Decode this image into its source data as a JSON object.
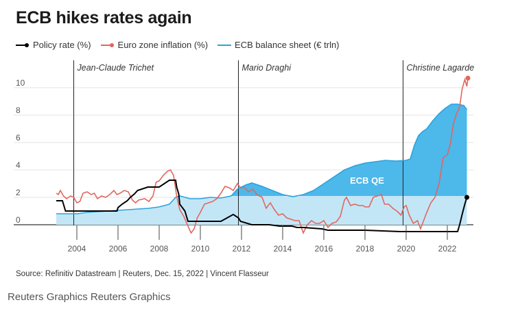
{
  "title": "ECB hikes rates again",
  "legend": [
    {
      "label": "Policy rate (%)",
      "color": "#000000",
      "icon": "line-dot"
    },
    {
      "label": "Euro zone inflation (%)",
      "color": "#e0675e",
      "icon": "line-dot"
    },
    {
      "label": "ECB balance sheet (€ trln)",
      "color": "#2aa3dc",
      "icon": "line"
    }
  ],
  "source": "Source: Refinitiv Datastream | Reuters, Dec. 15, 2022 | Vincent Flasseur",
  "footer": "Reuters Graphics Reuters Graphics",
  "colors": {
    "policy": "#000000",
    "inflation": "#e0675e",
    "balance_line": "#2aa3dc",
    "qe_fill": "#4db8ea",
    "base_fill": "#c3e6f7"
  },
  "chart_data": {
    "type": "line",
    "title": "ECB hikes rates again",
    "xlabel": "",
    "ylabel": "",
    "xlim": [
      2003.0,
      2023.1
    ],
    "ylim": [
      -0.6,
      11
    ],
    "x_ticks": [
      2004,
      2006,
      2008,
      2010,
      2012,
      2014,
      2016,
      2018,
      2020,
      2022
    ],
    "y_ticks": [
      0,
      2,
      4,
      6,
      8,
      10
    ],
    "annotations": [
      {
        "label": "Jean-Claude Trichet",
        "x": 2003.85
      },
      {
        "label": "Mario Draghi",
        "x": 2011.85
      },
      {
        "label": "Christine Lagarde",
        "x": 2019.85
      }
    ],
    "area_label": "ECB QE",
    "area_label_position": [
      2018.1,
      3.0
    ],
    "base_level": 2.1,
    "series": [
      {
        "name": "Policy rate (%)",
        "points": [
          [
            2003.0,
            1.75
          ],
          [
            2003.15,
            1.75
          ],
          [
            2003.3,
            1.75
          ],
          [
            2003.45,
            1.0
          ],
          [
            2004.0,
            1.0
          ],
          [
            2005.0,
            1.0
          ],
          [
            2005.95,
            1.0
          ],
          [
            2006.0,
            1.25
          ],
          [
            2006.2,
            1.5
          ],
          [
            2006.45,
            1.75
          ],
          [
            2006.6,
            2.0
          ],
          [
            2006.8,
            2.25
          ],
          [
            2006.95,
            2.5
          ],
          [
            2007.45,
            2.75
          ],
          [
            2008.0,
            2.75
          ],
          [
            2008.5,
            3.25
          ],
          [
            2008.8,
            3.25
          ],
          [
            2008.85,
            2.75
          ],
          [
            2008.95,
            2.25
          ],
          [
            2009.0,
            1.5
          ],
          [
            2009.25,
            1.0
          ],
          [
            2009.4,
            0.25
          ],
          [
            2010.0,
            0.25
          ],
          [
            2011.0,
            0.25
          ],
          [
            2011.3,
            0.5
          ],
          [
            2011.6,
            0.75
          ],
          [
            2011.85,
            0.5
          ],
          [
            2011.95,
            0.25
          ],
          [
            2012.5,
            0.0
          ],
          [
            2013.35,
            0.0
          ],
          [
            2013.85,
            -0.1
          ],
          [
            2014.45,
            -0.1
          ],
          [
            2014.7,
            -0.2
          ],
          [
            2015.0,
            -0.2
          ],
          [
            2015.9,
            -0.3
          ],
          [
            2016.2,
            -0.4
          ],
          [
            2017.0,
            -0.4
          ],
          [
            2018.0,
            -0.4
          ],
          [
            2019.7,
            -0.5
          ],
          [
            2020.0,
            -0.5
          ],
          [
            2021.0,
            -0.5
          ],
          [
            2022.0,
            -0.5
          ],
          [
            2022.5,
            -0.5
          ],
          [
            2022.6,
            0.0
          ],
          [
            2022.72,
            0.75
          ],
          [
            2022.85,
            1.5
          ],
          [
            2022.95,
            2.0
          ]
        ]
      },
      {
        "name": "Euro zone inflation (%)",
        "points": [
          [
            2003.0,
            2.3
          ],
          [
            2003.1,
            2.2
          ],
          [
            2003.2,
            2.5
          ],
          [
            2003.35,
            2.1
          ],
          [
            2003.5,
            1.9
          ],
          [
            2003.7,
            2.1
          ],
          [
            2003.85,
            2.0
          ],
          [
            2004.0,
            1.6
          ],
          [
            2004.15,
            1.7
          ],
          [
            2004.3,
            2.3
          ],
          [
            2004.5,
            2.4
          ],
          [
            2004.7,
            2.2
          ],
          [
            2004.85,
            2.3
          ],
          [
            2005.0,
            1.9
          ],
          [
            2005.2,
            2.1
          ],
          [
            2005.4,
            2.0
          ],
          [
            2005.6,
            2.2
          ],
          [
            2005.8,
            2.5
          ],
          [
            2005.95,
            2.2
          ],
          [
            2006.1,
            2.3
          ],
          [
            2006.3,
            2.5
          ],
          [
            2006.5,
            2.4
          ],
          [
            2006.7,
            1.8
          ],
          [
            2006.85,
            1.6
          ],
          [
            2007.0,
            1.8
          ],
          [
            2007.3,
            1.9
          ],
          [
            2007.5,
            1.7
          ],
          [
            2007.7,
            2.1
          ],
          [
            2007.85,
            3.1
          ],
          [
            2008.0,
            3.2
          ],
          [
            2008.2,
            3.6
          ],
          [
            2008.4,
            3.9
          ],
          [
            2008.55,
            4.0
          ],
          [
            2008.7,
            3.6
          ],
          [
            2008.85,
            2.1
          ],
          [
            2009.0,
            1.1
          ],
          [
            2009.2,
            0.6
          ],
          [
            2009.4,
            -0.1
          ],
          [
            2009.55,
            -0.6
          ],
          [
            2009.7,
            -0.3
          ],
          [
            2009.85,
            0.5
          ],
          [
            2010.0,
            0.9
          ],
          [
            2010.2,
            1.5
          ],
          [
            2010.4,
            1.6
          ],
          [
            2010.6,
            1.7
          ],
          [
            2010.8,
            1.9
          ],
          [
            2011.0,
            2.3
          ],
          [
            2011.2,
            2.8
          ],
          [
            2011.4,
            2.7
          ],
          [
            2011.6,
            2.5
          ],
          [
            2011.8,
            3.0
          ],
          [
            2011.95,
            2.7
          ],
          [
            2012.15,
            2.7
          ],
          [
            2012.35,
            2.4
          ],
          [
            2012.55,
            2.6
          ],
          [
            2012.75,
            2.2
          ],
          [
            2013.0,
            2.0
          ],
          [
            2013.2,
            1.2
          ],
          [
            2013.4,
            1.6
          ],
          [
            2013.6,
            1.1
          ],
          [
            2013.8,
            0.7
          ],
          [
            2014.0,
            0.8
          ],
          [
            2014.2,
            0.5
          ],
          [
            2014.4,
            0.4
          ],
          [
            2014.6,
            0.3
          ],
          [
            2014.8,
            0.3
          ],
          [
            2015.0,
            -0.6
          ],
          [
            2015.2,
            0.0
          ],
          [
            2015.4,
            0.3
          ],
          [
            2015.6,
            0.1
          ],
          [
            2015.8,
            0.1
          ],
          [
            2016.0,
            0.3
          ],
          [
            2016.2,
            -0.2
          ],
          [
            2016.4,
            0.1
          ],
          [
            2016.6,
            0.2
          ],
          [
            2016.8,
            0.6
          ],
          [
            2017.0,
            1.8
          ],
          [
            2017.1,
            2.0
          ],
          [
            2017.3,
            1.4
          ],
          [
            2017.5,
            1.5
          ],
          [
            2017.7,
            1.4
          ],
          [
            2017.9,
            1.4
          ],
          [
            2018.0,
            1.3
          ],
          [
            2018.2,
            1.3
          ],
          [
            2018.4,
            2.0
          ],
          [
            2018.6,
            2.1
          ],
          [
            2018.8,
            2.2
          ],
          [
            2018.95,
            1.5
          ],
          [
            2019.15,
            1.5
          ],
          [
            2019.35,
            1.2
          ],
          [
            2019.55,
            1.0
          ],
          [
            2019.75,
            0.7
          ],
          [
            2019.9,
            1.3
          ],
          [
            2020.0,
            1.4
          ],
          [
            2020.15,
            0.7
          ],
          [
            2020.35,
            0.1
          ],
          [
            2020.55,
            0.3
          ],
          [
            2020.7,
            -0.3
          ],
          [
            2021.0,
            0.9
          ],
          [
            2021.2,
            1.6
          ],
          [
            2021.4,
            2.0
          ],
          [
            2021.6,
            3.0
          ],
          [
            2021.8,
            4.9
          ],
          [
            2022.0,
            5.1
          ],
          [
            2022.15,
            5.9
          ],
          [
            2022.3,
            7.4
          ],
          [
            2022.45,
            8.1
          ],
          [
            2022.6,
            8.6
          ],
          [
            2022.72,
            9.9
          ],
          [
            2022.85,
            10.6
          ],
          [
            2022.95,
            10.1
          ],
          [
            2023.0,
            10.7
          ]
        ]
      },
      {
        "name": "ECB balance sheet (€ trln)",
        "points": [
          [
            2003.0,
            0.8
          ],
          [
            2004.0,
            0.8
          ],
          [
            2004.5,
            0.9
          ],
          [
            2005.0,
            0.95
          ],
          [
            2005.5,
            1.0
          ],
          [
            2006.0,
            1.05
          ],
          [
            2006.5,
            1.1
          ],
          [
            2007.0,
            1.15
          ],
          [
            2007.5,
            1.2
          ],
          [
            2008.0,
            1.3
          ],
          [
            2008.5,
            1.5
          ],
          [
            2008.8,
            2.0
          ],
          [
            2009.0,
            2.1
          ],
          [
            2009.5,
            1.9
          ],
          [
            2010.0,
            1.9
          ],
          [
            2010.5,
            2.0
          ],
          [
            2011.0,
            1.95
          ],
          [
            2011.5,
            2.1
          ],
          [
            2011.8,
            2.6
          ],
          [
            2012.2,
            2.9
          ],
          [
            2012.5,
            3.05
          ],
          [
            2013.0,
            2.8
          ],
          [
            2013.5,
            2.5
          ],
          [
            2014.0,
            2.2
          ],
          [
            2014.5,
            2.05
          ],
          [
            2015.0,
            2.2
          ],
          [
            2015.5,
            2.5
          ],
          [
            2016.0,
            3.0
          ],
          [
            2016.5,
            3.5
          ],
          [
            2017.0,
            4.0
          ],
          [
            2017.5,
            4.3
          ],
          [
            2018.0,
            4.5
          ],
          [
            2018.5,
            4.6
          ],
          [
            2019.0,
            4.7
          ],
          [
            2019.5,
            4.65
          ],
          [
            2020.0,
            4.7
          ],
          [
            2020.2,
            4.8
          ],
          [
            2020.4,
            5.8
          ],
          [
            2020.6,
            6.5
          ],
          [
            2020.8,
            6.8
          ],
          [
            2021.0,
            7.0
          ],
          [
            2021.3,
            7.6
          ],
          [
            2021.6,
            8.1
          ],
          [
            2021.9,
            8.5
          ],
          [
            2022.2,
            8.8
          ],
          [
            2022.5,
            8.8
          ],
          [
            2022.8,
            8.7
          ],
          [
            2022.95,
            8.4
          ]
        ]
      }
    ]
  }
}
